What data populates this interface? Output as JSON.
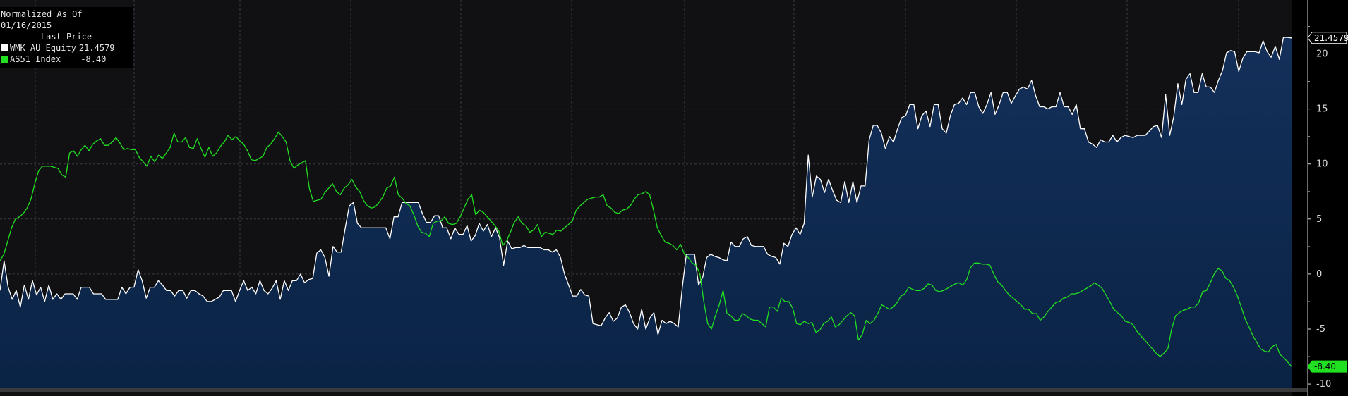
{
  "legend": {
    "header": "Normalized As Of 01/16/2015",
    "subheader": "Last Price",
    "items": [
      {
        "name": "WMK AU Equity",
        "value": "21.4579",
        "color": "#ffffff"
      },
      {
        "name": "AS51 Index",
        "value": "-8.40",
        "color": "#21e021"
      }
    ]
  },
  "chart_data": {
    "type": "area",
    "title": "",
    "xlabel": "",
    "ylabel": "",
    "ylim": [
      -10.7,
      24.9
    ],
    "y_ticks": [
      -10,
      -5,
      0,
      5,
      10,
      15,
      20
    ],
    "grid": true,
    "legend_position": "top-left",
    "last_value_tags": [
      "21.4579",
      "-8.40"
    ],
    "series": [
      {
        "name": "WMK AU Equity",
        "color": "#ffffff",
        "fill": "#0d2a4e",
        "values": [
          -1.5,
          1.2,
          -1.2,
          -2.3,
          -1.5,
          -3,
          -1,
          -2.3,
          -0.6,
          -1.9,
          -1.2,
          -2.5,
          -1,
          -2.3,
          -1.8,
          -2.3,
          -1.8,
          -1.8,
          -1.8,
          -2.3,
          -1.2,
          -1.2,
          -1.2,
          -1.8,
          -1.8,
          -1.8,
          -2.3,
          -2.3,
          -2.3,
          -2.3,
          -1.2,
          -1.8,
          -1.2,
          -1.2,
          0.4,
          -0.6,
          -2.2,
          -1.2,
          -1.2,
          -0.6,
          -1,
          -1.5,
          -1.5,
          -2,
          -1.5,
          -1.5,
          -2.2,
          -1.5,
          -1.5,
          -1.8,
          -2,
          -2.5,
          -2.5,
          -2.3,
          -2.1,
          -1.5,
          -1.5,
          -1.5,
          -2.5,
          -1.5,
          -0.6,
          -1.5,
          -1.2,
          -1.8,
          -0.6,
          -1.5,
          -1.8,
          -1.3,
          -0.6,
          -2.3,
          -0.6,
          -1.5,
          -0.6,
          -0.6,
          0,
          -0.8,
          -0.5,
          -0.4,
          1.9,
          2.2,
          1.5,
          -0.2,
          2.5,
          2,
          2,
          4.2,
          6.2,
          6.5,
          4.6,
          4.2,
          4.2,
          4.2,
          4.2,
          4.2,
          4.2,
          4.2,
          3.2,
          5.2,
          5.2,
          6.5,
          6.5,
          6.5,
          6.5,
          6.5,
          5.5,
          4.7,
          4.7,
          5.3,
          5.3,
          4.2,
          4.2,
          3.2,
          4.2,
          3.6,
          3.6,
          4.4,
          3,
          3.5,
          4.6,
          3.9,
          4.5,
          3.4,
          4.2,
          3.3,
          0.8,
          3,
          2.3,
          2.4,
          2.4,
          2.6,
          2.4,
          2.4,
          2.4,
          2.4,
          2.2,
          2.2,
          2,
          2.2,
          1.5,
          0,
          -1,
          -2,
          -2,
          -1.4,
          -1.9,
          -2,
          -4.5,
          -4.6,
          -4.7,
          -4,
          -3.5,
          -4.3,
          -4,
          -3,
          -2.8,
          -3.5,
          -4.5,
          -5,
          -3.2,
          -5,
          -4,
          -3.5,
          -5.5,
          -4.2,
          -4.5,
          -4.3,
          -4.5,
          -4.8,
          -1.2,
          1.8,
          1.8,
          1.8,
          -1,
          -0.3,
          1.5,
          1.8,
          1.6,
          1.5,
          1.3,
          1.2,
          2.9,
          2.5,
          2.5,
          3.2,
          3.4,
          2.6,
          2.5,
          2.5,
          2.5,
          1.8,
          1.6,
          1.5,
          0.9,
          2.8,
          2.5,
          3.6,
          4.2,
          3.6,
          4.6,
          10.8,
          7,
          8.9,
          8.6,
          7.4,
          8.6,
          7.6,
          6.7,
          6.5,
          8.4,
          6.5,
          8.4,
          6.5,
          8,
          8,
          12.2,
          13.5,
          13.5,
          12.8,
          11.4,
          12.5,
          12,
          13.2,
          14.2,
          14.4,
          15.4,
          15.4,
          13.2,
          14.4,
          14.8,
          13.4,
          15.4,
          15.4,
          13.2,
          12.8,
          14.4,
          15.4,
          15.5,
          16,
          15.4,
          16.5,
          16.5,
          15.2,
          14.6,
          15.4,
          16.5,
          14.5,
          15.4,
          16.5,
          16.5,
          15.5,
          16.2,
          16.8,
          17,
          16.8,
          17.6,
          16.2,
          15.2,
          15.2,
          15,
          15.2,
          15.2,
          16.5,
          15.2,
          15.2,
          14.5,
          15.4,
          13.2,
          13.2,
          12,
          11.8,
          11.5,
          12.2,
          12,
          12,
          12.6,
          12,
          12.4,
          12.6,
          12.5,
          12.4,
          12.6,
          12.6,
          12.6,
          13,
          13.4,
          13.5,
          12.4,
          16.3,
          12.6,
          14.3,
          17.3,
          15.4,
          17.7,
          18.2,
          16.5,
          16.5,
          18.2,
          17,
          17,
          16.5,
          17.6,
          18.5,
          20.1,
          20.3,
          20.2,
          18.4,
          19.6,
          20.2,
          20.2,
          20.2,
          20.1,
          21.2,
          20.2,
          19.7,
          20.7,
          19.5,
          21.5,
          21.5,
          21.4579
        ]
      },
      {
        "name": "AS51 Index",
        "color": "#21e021",
        "values": [
          1.2,
          1.8,
          3,
          4.2,
          5,
          5.2,
          5.5,
          6,
          6.8,
          8.2,
          9.4,
          9.8,
          9.8,
          9.8,
          9.7,
          9.6,
          9,
          8.8,
          11,
          11.2,
          10.7,
          11.3,
          11.7,
          11.2,
          11.8,
          12.1,
          12.3,
          11.7,
          11.7,
          12,
          12.4,
          11.9,
          11.3,
          11.4,
          11.3,
          11.3,
          10.6,
          10.2,
          9.8,
          10.7,
          10.2,
          10.8,
          10.5,
          11,
          11.5,
          12.8,
          12,
          12,
          12.4,
          11.5,
          11.4,
          12.3,
          11.4,
          10.6,
          11.5,
          10.7,
          11,
          11.6,
          12,
          12.6,
          12.2,
          12.5,
          12.1,
          11.8,
          11.2,
          10.4,
          10.3,
          10.5,
          10.7,
          11.5,
          11.8,
          12.3,
          12.9,
          12.5,
          12,
          10.3,
          9.6,
          9.9,
          10.1,
          10.3,
          7.8,
          6.6,
          6.7,
          6.8,
          7.4,
          7.8,
          8.2,
          7.5,
          7.2,
          7.8,
          8.1,
          8.6,
          7.9,
          7.5,
          6.7,
          6.2,
          6,
          6.1,
          6.5,
          7,
          7.8,
          8,
          8.8,
          7.2,
          6.9,
          6.4,
          6.2,
          5.4,
          4.4,
          3.8,
          3.7,
          3.4,
          4.6,
          4.8,
          4.8,
          5.2,
          4.6,
          4.5,
          4.6,
          5.2,
          6,
          6.8,
          7.2,
          5.4,
          5.8,
          5.6,
          5.2,
          4.8,
          4.4,
          3.9,
          2.6,
          3,
          3.8,
          4.7,
          5.2,
          4.6,
          4.4,
          3.8,
          4,
          4.5,
          3.4,
          3.8,
          3.7,
          3.6,
          4,
          3.9,
          4.2,
          4.5,
          4.8,
          5.8,
          6.2,
          6.5,
          6.8,
          6.9,
          7,
          7,
          7.2,
          6.2,
          6,
          5.6,
          5.5,
          5.8,
          5.9,
          6.2,
          6.8,
          7.2,
          7.3,
          7.5,
          7.2,
          5.8,
          4.2,
          3.5,
          2.9,
          2.8,
          2.6,
          2.2,
          2.7,
          1.8,
          1.5,
          1,
          0.8,
          0,
          -2.5,
          -4.5,
          -5,
          -3.8,
          -2.8,
          -1.5,
          -3.6,
          -3.8,
          -4.2,
          -4.2,
          -3.6,
          -3.8,
          -4.1,
          -4.2,
          -4.2,
          -4.5,
          -4.8,
          -3,
          -3,
          -3.4,
          -2.2,
          -2.5,
          -2.5,
          -3.1,
          -4.5,
          -4.6,
          -4.3,
          -4.5,
          -4.4,
          -5.3,
          -5.1,
          -4.5,
          -4.3,
          -3.9,
          -4.8,
          -4.6,
          -4.2,
          -3.8,
          -3.5,
          -3.8,
          -6,
          -5.5,
          -4.2,
          -4.5,
          -4.2,
          -3.6,
          -2.8,
          -3,
          -3.2,
          -3,
          -2.6,
          -2,
          -1.8,
          -1.2,
          -1.4,
          -1.5,
          -1.5,
          -1.3,
          -0.9,
          -1,
          -1.5,
          -1.6,
          -1.5,
          -1.3,
          -1.1,
          -0.9,
          -0.8,
          -1,
          -0.5,
          0.6,
          1,
          1,
          0.9,
          0.9,
          0.8,
          0,
          -0.7,
          -1,
          -1.5,
          -1.9,
          -2.2,
          -2.5,
          -2.8,
          -3.2,
          -3.2,
          -3.6,
          -3.6,
          -4.2,
          -3.9,
          -3.4,
          -3,
          -2.6,
          -2.5,
          -2.2,
          -2.1,
          -1.8,
          -1.8,
          -1.7,
          -1.5,
          -1.3,
          -1.1,
          -0.8,
          -1,
          -1.3,
          -1.9,
          -2.5,
          -3.2,
          -3.5,
          -3.8,
          -4.3,
          -4.4,
          -4.6,
          -5.2,
          -5.6,
          -6,
          -6.4,
          -6.8,
          -7.2,
          -7.5,
          -7.2,
          -6.8,
          -5,
          -3.8,
          -3.5,
          -3.3,
          -3.2,
          -3,
          -3,
          -2.6,
          -1.6,
          -1.5,
          -0.8,
          0,
          0.5,
          0.3,
          -0.4,
          -0.6,
          -1.2,
          -2,
          -3,
          -4.1,
          -4.8,
          -5.6,
          -6.2,
          -6.8,
          -7,
          -7.1,
          -6.6,
          -6.4,
          -7.3,
          -7.6,
          -8,
          -8.4
        ]
      }
    ]
  }
}
